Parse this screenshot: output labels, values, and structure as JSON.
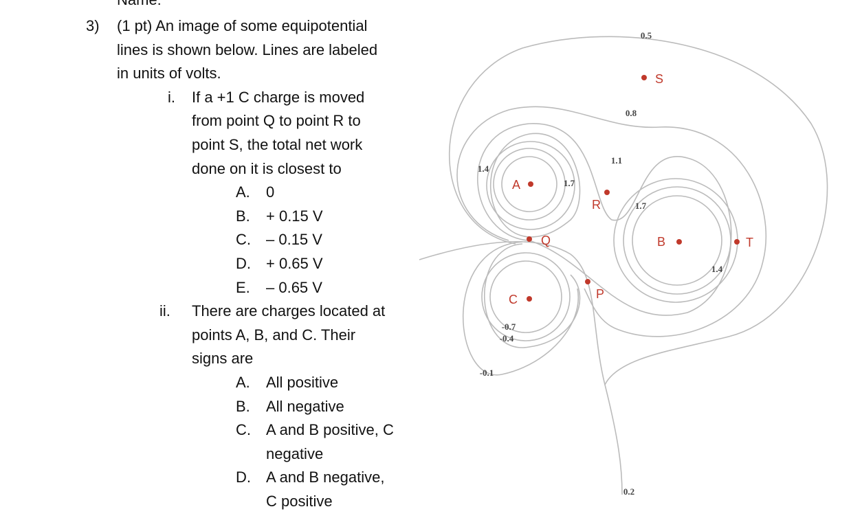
{
  "header": {
    "label": "Name:"
  },
  "question": {
    "number": "3)",
    "lines": [
      "(1 pt) An image of some equipotential",
      "lines is shown below. Lines are labeled",
      "in units of volts."
    ],
    "parts": [
      {
        "label": "i.",
        "lines": [
          "If a +1 C charge is moved",
          "from point Q to point R to",
          "point S, the total net work",
          "done on it is closest to"
        ],
        "options": [
          {
            "label": "A.",
            "lines": [
              "0"
            ]
          },
          {
            "label": "B.",
            "lines": [
              "+ 0.15 V"
            ]
          },
          {
            "label": "C.",
            "lines": [
              "– 0.15 V"
            ]
          },
          {
            "label": "D.",
            "lines": [
              "+ 0.65 V"
            ]
          },
          {
            "label": "E.",
            "lines": [
              "– 0.65 V"
            ]
          }
        ]
      },
      {
        "label": "ii.",
        "lines": [
          "There are charges located at",
          "points A, B, and C.  Their",
          "signs are"
        ],
        "options": [
          {
            "label": "A.",
            "lines": [
              "All positive"
            ]
          },
          {
            "label": "B.",
            "lines": [
              "All negative"
            ]
          },
          {
            "label": "C.",
            "lines": [
              "A and B positive, C",
              "negative"
            ]
          },
          {
            "label": "D.",
            "lines": [
              "A and B negative,",
              "C positive"
            ]
          }
        ]
      }
    ]
  },
  "diagram": {
    "contour_labels": [
      "0.5",
      "0.8",
      "1.1",
      "1.4",
      "1.7",
      "1.7",
      "1.4",
      "-0.7",
      "-0.4",
      "-0.1",
      "0.2"
    ],
    "points": [
      "S",
      "R",
      "Q",
      "P",
      "T",
      "A",
      "B",
      "C"
    ]
  }
}
